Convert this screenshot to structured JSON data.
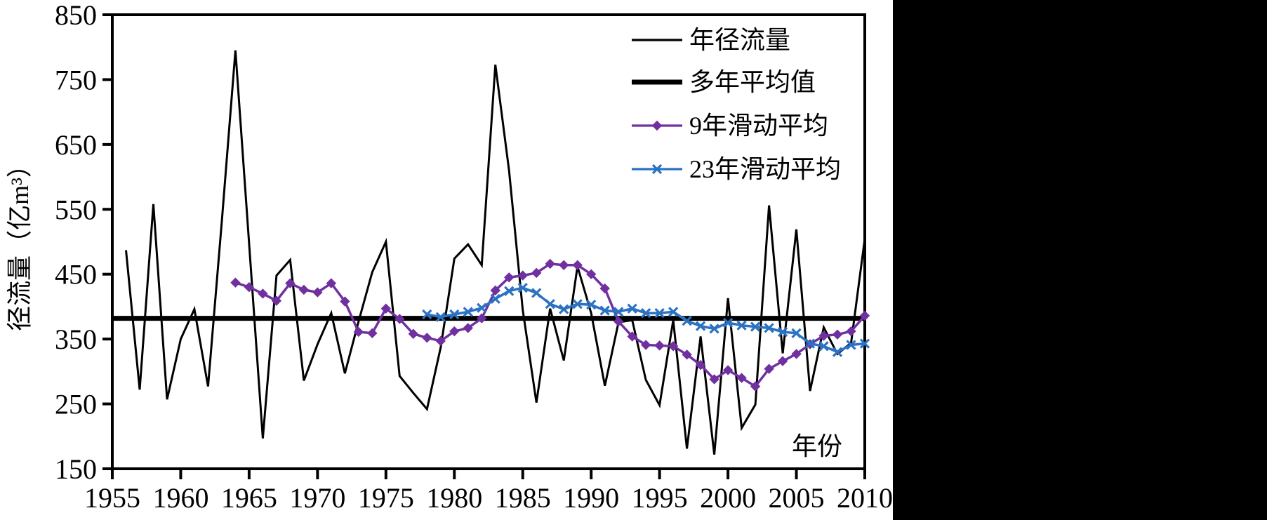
{
  "figure": {
    "kind": "line-chart-screenshot",
    "background": "#ffffff",
    "side_panel_color": "#000000"
  },
  "y_axis": {
    "title": "径流量（亿m³）",
    "ticks": [
      "850",
      "750",
      "650",
      "550",
      "450",
      "350",
      "250",
      "150"
    ],
    "min": 150,
    "max": 850
  },
  "x_axis": {
    "inner_label": "年份",
    "ticks": [
      "1955",
      "1960",
      "1965",
      "1970",
      "1975",
      "1980",
      "1985",
      "1990",
      "1995",
      "2000",
      "2005",
      "2010"
    ],
    "min": 1955,
    "max": 2010
  },
  "legend": {
    "items": [
      {
        "label": "年径流量",
        "style": "thin-line",
        "color": "#000000"
      },
      {
        "label": "多年平均值",
        "style": "thick-line",
        "color": "#000000"
      },
      {
        "label": "9年滑动平均",
        "style": "line-diamond",
        "color": "#7030A0"
      },
      {
        "label": "23年滑动平均",
        "style": "line-x",
        "color": "#2B72C2"
      }
    ]
  },
  "chart_data": {
    "type": "line",
    "title": "",
    "xlabel": "年份",
    "ylabel": "径流量（亿m³）",
    "xlim": [
      1955,
      2010
    ],
    "ylim": [
      150,
      850
    ],
    "grid": false,
    "legend_position": "top-right-inside",
    "series": [
      {
        "name": "年径流量",
        "color": "#000000",
        "marker": "none",
        "line_width": 3,
        "start_year": 1956,
        "values": [
          487,
          272,
          558,
          257,
          350,
          396,
          277,
          530,
          795,
          497,
          197,
          448,
          472,
          286,
          342,
          390,
          297,
          377,
          453,
          500,
          293,
          267,
          242,
          337,
          474,
          496,
          464,
          773,
          610,
          395,
          252,
          397,
          317,
          462,
          390,
          278,
          376,
          379,
          287,
          248,
          379,
          181,
          354,
          172,
          413,
          213,
          249,
          556,
          328,
          519,
          270,
          368,
          327,
          344,
          505
        ]
      },
      {
        "name": "多年平均值",
        "color": "#000000",
        "marker": "none",
        "line_width": 7,
        "constant_value": 382,
        "start_year": 1955,
        "end_year": 2010
      },
      {
        "name": "9年滑动平均",
        "color": "#7030A0",
        "marker": "diamond",
        "line_width": 3.5,
        "start_year": 1964,
        "values": [
          437,
          430,
          420,
          409,
          436,
          426,
          422,
          436,
          408,
          361,
          359,
          397,
          381,
          358,
          352,
          347,
          362,
          367,
          382,
          425,
          445,
          448,
          452,
          466,
          464,
          464,
          450,
          428,
          377,
          354,
          341,
          340,
          339,
          326,
          310,
          288,
          302,
          290,
          277,
          304,
          316,
          327,
          342,
          355,
          357,
          362,
          386
        ]
      },
      {
        "name": "23年滑动平均",
        "color": "#2B72C2",
        "marker": "x",
        "line_width": 3.5,
        "start_year": 1978,
        "values": [
          388,
          384,
          388,
          392,
          398,
          412,
          424,
          429,
          421,
          404,
          396,
          404,
          403,
          394,
          392,
          397,
          390,
          390,
          392,
          378,
          370,
          366,
          375,
          371,
          369,
          367,
          361,
          359,
          343,
          339,
          330,
          341,
          343
        ]
      }
    ]
  }
}
